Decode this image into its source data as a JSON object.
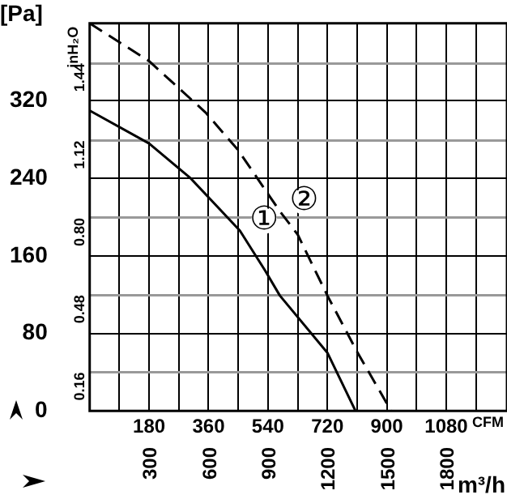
{
  "chart_data": {
    "type": "line",
    "xlabel": "CFM",
    "x2label": "m³/h",
    "ylabel": "[Pa]",
    "y2label": "inH₂O",
    "xlim": [
      0,
      1264
    ],
    "xticks": [
      {
        "value": 90,
        "label": null
      },
      180,
      {
        "value": 270,
        "label": null
      },
      360,
      {
        "value": 450,
        "label": null
      },
      540,
      {
        "value": 630,
        "label": null
      },
      720,
      {
        "value": 810,
        "label": null
      },
      900,
      {
        "value": 990,
        "label": null
      },
      1080,
      {
        "value": 1170,
        "label": null
      }
    ],
    "x2lim": [
      0,
      2105
    ],
    "x2ticks": [
      300,
      600,
      900,
      1200,
      1500,
      1800
    ],
    "ylim": [
      0,
      400
    ],
    "yticks": [
      0,
      80,
      160,
      240,
      320
    ],
    "y2lim": [
      0,
      1.606
    ],
    "y2ticks": [
      0.16,
      0.48,
      {
        "value": 0.8,
        "label": "0.80"
      },
      1.12,
      1.44
    ],
    "grid": true,
    "legend": false,
    "marker": "none",
    "series": [
      {
        "name": "①",
        "color": "#000000",
        "line_style": "solid",
        "x": [
          0,
          180,
          306,
          455,
          531,
          576,
          720,
          805
        ],
        "values": [
          310,
          276,
          240,
          186,
          145,
          119,
          60,
          0
        ]
      },
      {
        "name": "②",
        "color": "#000000",
        "line_style": "dashed",
        "x": [
          0,
          180,
          351,
          450,
          576,
          630,
          720,
          810,
          913
        ],
        "values": [
          400,
          361,
          308,
          269,
          206,
          182,
          119,
          61,
          0
        ]
      }
    ]
  }
}
